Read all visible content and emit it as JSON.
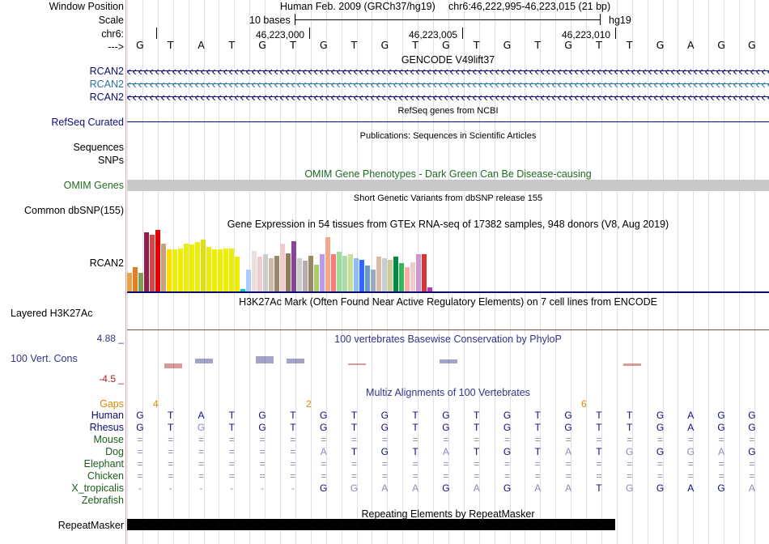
{
  "header": {
    "window_position_label": "Window Position",
    "scale_label": "Scale",
    "chrom_label": "chr6:",
    "arrow_label": "--->",
    "assembly_text": "Human Feb. 2009 (GRCh37/hg19)",
    "position_text": "chr6:46,222,995-46,223,015 (21 bp)",
    "scale_text": "10 bases",
    "db_text": "hg19",
    "ticks": [
      "46,223,000",
      "46,223,005",
      "46,223,010"
    ],
    "sequence": [
      "G",
      "T",
      "A",
      "T",
      "G",
      "T",
      "G",
      "T",
      "G",
      "T",
      "G",
      "T",
      "G",
      "T",
      "G",
      "T",
      "T",
      "G",
      "A",
      "G",
      "G"
    ]
  },
  "gencode": {
    "title": "GENCODE V49lift37",
    "labels": [
      "RCAN2",
      "RCAN2",
      "RCAN2"
    ],
    "colors": [
      "#0c0c78",
      "#2676a0",
      "#0c0c78"
    ]
  },
  "refseq": {
    "title": "RefSeq genes from NCBI",
    "label": "RefSeq Curated"
  },
  "publications": {
    "title": "Publications: Sequences in Scientific Articles",
    "label1": "Sequences",
    "label2": "SNPs"
  },
  "omim": {
    "title": "OMIM Gene Phenotypes - Dark Green Can Be Disease-causing",
    "label": "OMIM Genes"
  },
  "dbsnp": {
    "title": "Short Genetic Variants from dbSNP release 155",
    "label": "Common dbSNP(155)"
  },
  "gtex": {
    "title": "Gene Expression in 54 tissues from GTEx RNA-seq of 17382 samples, 948 donors (V8, Aug 2019)",
    "label": "RCAN2",
    "levels": [
      0.3,
      0.4,
      0.3,
      0.96,
      0.92,
      1.0,
      0.78,
      0.68,
      0.68,
      0.7,
      0.78,
      0.76,
      0.8,
      0.84,
      0.72,
      0.68,
      0.68,
      0.7,
      0.7,
      0.56,
      0.04,
      0.36,
      0.66,
      0.56,
      0.6,
      0.54,
      0.58,
      0.78,
      0.62,
      0.82,
      0.54,
      0.5,
      0.58,
      0.44,
      0.6,
      0.88,
      0.6,
      0.64,
      0.58,
      0.6,
      0.54,
      0.52,
      0.42,
      0.36,
      0.56,
      0.54,
      0.52,
      0.56,
      0.46,
      0.4,
      0.48,
      0.6,
      0.6,
      0.06
    ],
    "colors": [
      "#f0a040",
      "#e07f2a",
      "#7fa050",
      "#8f1f4f",
      "#e04040",
      "#e00000",
      "#c8a080",
      "#ffdd00",
      "#eeee00",
      "#eeee00",
      "#eeee00",
      "#eeee00",
      "#eeee00",
      "#dddd22",
      "#eeee00",
      "#eeee00",
      "#eeee00",
      "#eeee00",
      "#eeee00",
      "#eeee00",
      "#00cccc",
      "#aaccff",
      "#eedddd",
      "#eecccc",
      "#cccccc",
      "#ccbbaa",
      "#998866",
      "#eecccc",
      "#997755",
      "#884499",
      "#cccccc",
      "#bbaaaa",
      "#998866",
      "#aacc66",
      "#bb99ee",
      "#eeaa88",
      "#ff7777",
      "#99dd99",
      "#aaddaa",
      "#ccdd99",
      "#88bbff",
      "#3366ff",
      "#6699cc",
      "#99aabb",
      "#ddbbaa",
      "#cccccc",
      "#cccc99",
      "#008844",
      "#33bb55",
      "#ffaaaa",
      "#eecccc",
      "#cc99cc",
      "#dd3333",
      "#bb33bb"
    ]
  },
  "h3k27ac": {
    "title": "H3K27Ac Mark (Often Found Near Active Regulatory Elements) on 7 cell lines from ENCODE",
    "label": "Layered H3K27Ac"
  },
  "conservation": {
    "title": "100 vertebrates Basewise Conservation by PhyloP",
    "label": "100 Vert. Cons",
    "max": "4.88 _",
    "min": "-4.5 _",
    "scores": [
      0.0,
      -0.6,
      0.6,
      0.0,
      0.9,
      0.6,
      0.0,
      -0.2,
      0.0,
      0.0,
      0.5,
      0.0,
      0.0,
      0.0,
      0.0,
      0.0,
      -0.3,
      0.0,
      0.0,
      0.0,
      0.0
    ]
  },
  "multiz": {
    "title": "Multiz Alignments of 100 Vertebrates",
    "gaps_label": "Gaps",
    "gap_counts": [
      "4",
      "2",
      "6"
    ],
    "species": [
      {
        "name": "Human",
        "seq": [
          "G",
          "T",
          "A",
          "T",
          "G",
          "T",
          "G",
          "T",
          "G",
          "T",
          "G",
          "T",
          "G",
          "T",
          "G",
          "T",
          "T",
          "G",
          "A",
          "G",
          "G"
        ]
      },
      {
        "name": "Rhesus",
        "seq": [
          "G",
          "T",
          "G",
          "T",
          "G",
          "T",
          "G",
          "T",
          "G",
          "T",
          "G",
          "T",
          "G",
          "T",
          "G",
          "T",
          "T",
          "G",
          "A",
          "G",
          "G"
        ]
      },
      {
        "name": "Mouse",
        "seq": [
          "=",
          "=",
          "=",
          "=",
          "=",
          "=",
          "=",
          "=",
          "=",
          "=",
          "=",
          "=",
          "=",
          "=",
          "=",
          "=",
          "=",
          "=",
          "=",
          "=",
          "="
        ]
      },
      {
        "name": "Dog",
        "seq": [
          "=",
          "=",
          "=",
          "=",
          "=",
          "=",
          "A",
          "T",
          "G",
          "T",
          "A",
          "T",
          "G",
          "T",
          "A",
          "T",
          "G",
          "G",
          "G",
          "A",
          "G"
        ]
      },
      {
        "name": "Elephant",
        "seq": [
          "=",
          "=",
          "=",
          "=",
          "=",
          "=",
          "=",
          "=",
          "=",
          "=",
          "=",
          "=",
          "=",
          "=",
          "=",
          "=",
          "=",
          "=",
          "=",
          "=",
          "="
        ]
      },
      {
        "name": "Chicken",
        "seq": [
          "=",
          "=",
          "=",
          "=",
          "=",
          "=",
          "=",
          "=",
          "=",
          "=",
          "=",
          "=",
          "=",
          "=",
          "=",
          "=",
          "=",
          "=",
          "=",
          "=",
          "="
        ]
      },
      {
        "name": "X_tropicalis",
        "seq": [
          "-",
          "-",
          "-",
          "-",
          "-",
          "-",
          "G",
          "G",
          "A",
          "A",
          "G",
          "A",
          "G",
          "A",
          "A",
          "T",
          "G",
          "G",
          "A",
          "G",
          "A"
        ]
      },
      {
        "name": "Zebrafish",
        "seq": [
          "",
          "",
          "",
          "",
          "",
          "",
          "",
          "",
          "",
          "",
          "",
          "",
          "",
          "",
          "",
          "",
          "",
          "",
          "",
          "",
          ""
        ]
      }
    ]
  },
  "repeatmasker": {
    "title": "Repeating Elements by RepeatMasker",
    "label": "RepeatMasker"
  }
}
